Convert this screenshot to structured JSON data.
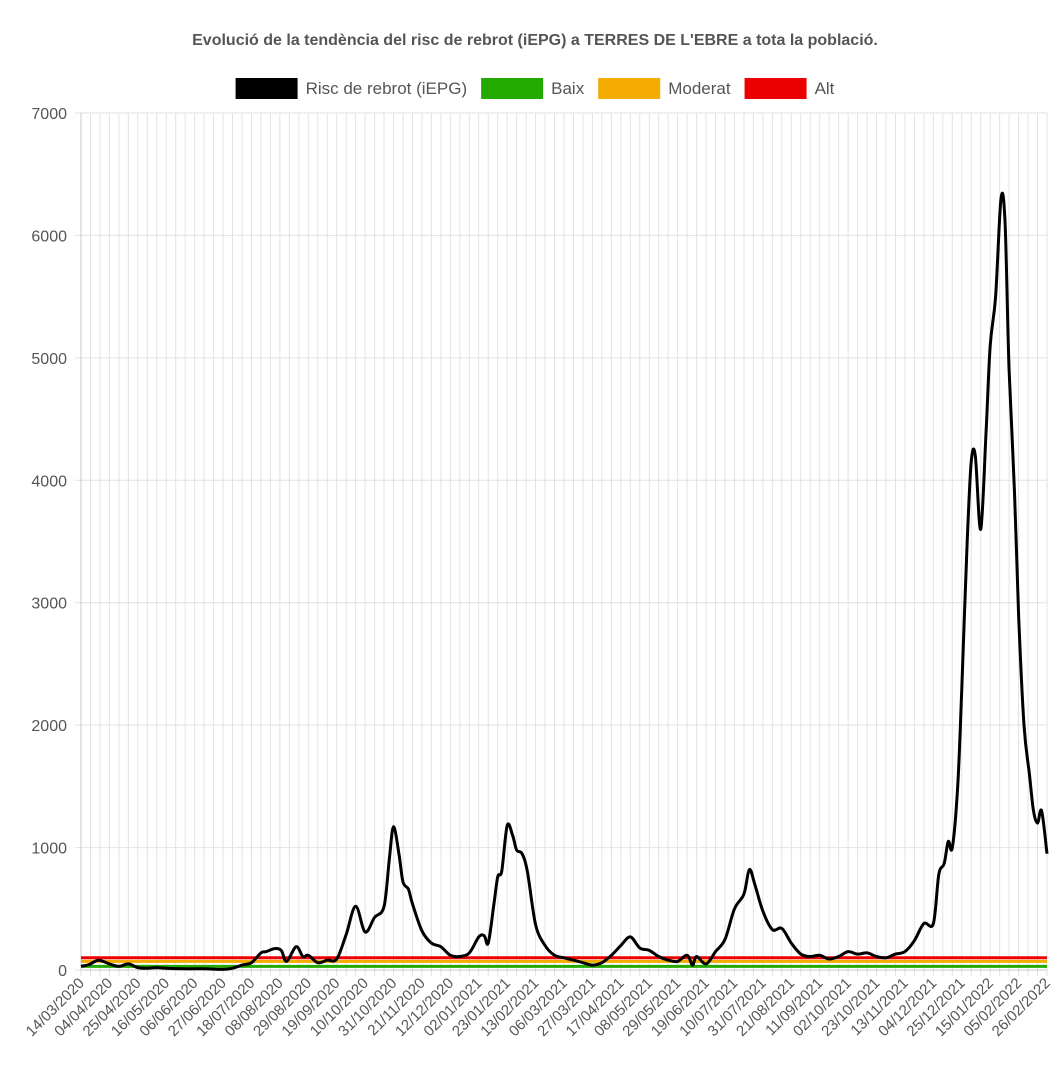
{
  "chart_data": {
    "type": "line",
    "title": "Evolució de la tendència del risc de rebrot (iEPG) a TERRES DE L'EBRE a tota la població.",
    "legend_position": "top",
    "grid": true,
    "ylim": [
      0,
      7000
    ],
    "yticks": [
      0,
      1000,
      2000,
      3000,
      4000,
      5000,
      6000,
      7000
    ],
    "x_start": "14/03/2020",
    "x_end": "26/02/2022",
    "x_tick_labels": [
      "14/03/2020",
      "04/04/2020",
      "25/04/2020",
      "16/05/2020",
      "06/06/2020",
      "27/06/2020",
      "18/07/2020",
      "08/08/2020",
      "29/08/2020",
      "19/09/2020",
      "10/10/2020",
      "31/10/2020",
      "21/11/2020",
      "12/12/2020",
      "02/01/2021",
      "23/01/2021",
      "13/02/2021",
      "06/03/2021",
      "27/03/2021",
      "17/04/2021",
      "08/05/2021",
      "29/05/2021",
      "19/06/2021",
      "10/07/2021",
      "31/07/2021",
      "21/08/2021",
      "11/09/2021",
      "02/10/2021",
      "23/10/2021",
      "13/11/2021",
      "04/12/2021",
      "25/12/2021",
      "15/01/2022",
      "05/02/2022",
      "26/02/2022"
    ],
    "series": [
      {
        "name": "Risc de rebrot (iEPG)",
        "color": "#000000",
        "points": [
          [
            "14/03/2020",
            30
          ],
          [
            "20/03/2020",
            45
          ],
          [
            "27/03/2020",
            80
          ],
          [
            "04/04/2020",
            50
          ],
          [
            "11/04/2020",
            30
          ],
          [
            "18/04/2020",
            50
          ],
          [
            "25/04/2020",
            20
          ],
          [
            "02/05/2020",
            15
          ],
          [
            "09/05/2020",
            20
          ],
          [
            "16/05/2020",
            15
          ],
          [
            "30/05/2020",
            10
          ],
          [
            "13/06/2020",
            10
          ],
          [
            "27/06/2020",
            5
          ],
          [
            "04/07/2020",
            15
          ],
          [
            "11/07/2020",
            40
          ],
          [
            "18/07/2020",
            60
          ],
          [
            "25/07/2020",
            140
          ],
          [
            "29/07/2020",
            150
          ],
          [
            "04/08/2020",
            175
          ],
          [
            "09/08/2020",
            160
          ],
          [
            "13/08/2020",
            70
          ],
          [
            "20/08/2020",
            190
          ],
          [
            "25/08/2020",
            110
          ],
          [
            "29/08/2020",
            120
          ],
          [
            "05/09/2020",
            60
          ],
          [
            "12/09/2020",
            80
          ],
          [
            "19/09/2020",
            90
          ],
          [
            "26/09/2020",
            290
          ],
          [
            "03/10/2020",
            520
          ],
          [
            "10/10/2020",
            310
          ],
          [
            "17/10/2020",
            430
          ],
          [
            "24/10/2020",
            520
          ],
          [
            "28/10/2020",
            920
          ],
          [
            "31/10/2020",
            1170
          ],
          [
            "04/11/2020",
            950
          ],
          [
            "07/11/2020",
            720
          ],
          [
            "11/11/2020",
            660
          ],
          [
            "14/11/2020",
            540
          ],
          [
            "21/11/2020",
            320
          ],
          [
            "28/11/2020",
            220
          ],
          [
            "05/12/2020",
            190
          ],
          [
            "12/12/2020",
            120
          ],
          [
            "19/12/2020",
            110
          ],
          [
            "26/12/2020",
            140
          ],
          [
            "02/01/2021",
            270
          ],
          [
            "06/01/2021",
            280
          ],
          [
            "09/01/2021",
            220
          ],
          [
            "13/01/2021",
            520
          ],
          [
            "16/01/2021",
            760
          ],
          [
            "19/01/2021",
            810
          ],
          [
            "23/01/2021",
            1180
          ],
          [
            "27/01/2021",
            1100
          ],
          [
            "30/01/2021",
            980
          ],
          [
            "03/02/2021",
            950
          ],
          [
            "07/02/2021",
            800
          ],
          [
            "13/02/2021",
            370
          ],
          [
            "20/02/2021",
            200
          ],
          [
            "27/02/2021",
            120
          ],
          [
            "06/03/2021",
            100
          ],
          [
            "13/03/2021",
            80
          ],
          [
            "20/03/2021",
            60
          ],
          [
            "27/03/2021",
            40
          ],
          [
            "03/04/2021",
            60
          ],
          [
            "10/04/2021",
            120
          ],
          [
            "17/04/2021",
            200
          ],
          [
            "24/04/2021",
            270
          ],
          [
            "01/05/2021",
            180
          ],
          [
            "08/05/2021",
            160
          ],
          [
            "15/05/2021",
            110
          ],
          [
            "22/05/2021",
            80
          ],
          [
            "29/05/2021",
            70
          ],
          [
            "05/06/2021",
            120
          ],
          [
            "09/06/2021",
            40
          ],
          [
            "12/06/2021",
            110
          ],
          [
            "19/06/2021",
            50
          ],
          [
            "26/06/2021",
            150
          ],
          [
            "03/07/2021",
            250
          ],
          [
            "10/07/2021",
            500
          ],
          [
            "17/07/2021",
            620
          ],
          [
            "21/07/2021",
            820
          ],
          [
            "25/07/2021",
            700
          ],
          [
            "31/07/2021",
            480
          ],
          [
            "07/08/2021",
            330
          ],
          [
            "14/08/2021",
            340
          ],
          [
            "21/08/2021",
            220
          ],
          [
            "28/08/2021",
            130
          ],
          [
            "04/09/2021",
            110
          ],
          [
            "11/09/2021",
            120
          ],
          [
            "18/09/2021",
            90
          ],
          [
            "25/09/2021",
            110
          ],
          [
            "02/10/2021",
            150
          ],
          [
            "09/10/2021",
            130
          ],
          [
            "16/10/2021",
            140
          ],
          [
            "23/10/2021",
            110
          ],
          [
            "30/10/2021",
            100
          ],
          [
            "06/11/2021",
            130
          ],
          [
            "13/11/2021",
            150
          ],
          [
            "20/11/2021",
            240
          ],
          [
            "27/11/2021",
            380
          ],
          [
            "04/12/2021",
            380
          ],
          [
            "08/12/2021",
            780
          ],
          [
            "12/12/2021",
            870
          ],
          [
            "15/12/2021",
            1050
          ],
          [
            "18/12/2021",
            1000
          ],
          [
            "22/12/2021",
            1500
          ],
          [
            "25/12/2021",
            2300
          ],
          [
            "29/12/2021",
            3500
          ],
          [
            "01/01/2022",
            4150
          ],
          [
            "04/01/2022",
            4200
          ],
          [
            "08/01/2022",
            3600
          ],
          [
            "12/01/2022",
            4400
          ],
          [
            "15/01/2022",
            5100
          ],
          [
            "19/01/2022",
            5500
          ],
          [
            "23/01/2022",
            6300
          ],
          [
            "26/01/2022",
            6100
          ],
          [
            "29/01/2022",
            4900
          ],
          [
            "02/02/2022",
            3900
          ],
          [
            "05/02/2022",
            2900
          ],
          [
            "09/02/2022",
            2000
          ],
          [
            "13/02/2022",
            1600
          ],
          [
            "16/02/2022",
            1300
          ],
          [
            "19/02/2022",
            1200
          ],
          [
            "22/02/2022",
            1300
          ],
          [
            "26/02/2022",
            950
          ]
        ]
      },
      {
        "name": "Baix",
        "color": "#22aa00",
        "constant": 30
      },
      {
        "name": "Moderat",
        "color": "#f5ac00",
        "constant": 70
      },
      {
        "name": "Alt",
        "color": "#ee0000",
        "constant": 100
      }
    ]
  }
}
